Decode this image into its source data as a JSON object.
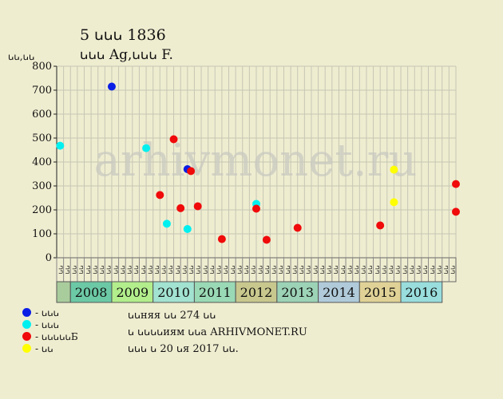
{
  "header": {
    "title_line1": "5 ꭎꭎꭎ 1836",
    "title_line2": "ꭎꭎꭎ Ag,ꭎꭎꭎ F.",
    "ylabel": "ꭎꭎ,ꭎꭎ"
  },
  "watermark": "arhivmonet.ru",
  "legend": [
    {
      "label": "- ꭎꭎꭎ",
      "color": "#0a1ee6"
    },
    {
      "label": "- ꭎꭎꭎ",
      "color": "#00f0f0"
    },
    {
      "label": "- ꭎꭎꭎꭎꭎБ",
      "color": "#f00a0a"
    },
    {
      "label": "- ꭎꭎ",
      "color": "#ffff00"
    }
  ],
  "notes": [
    "ꭎꭎняя ꭎꭎ 274 ꭎꭎ",
    "ꭎ ꭎꭎꭎꭎиям ꭎꭎа ARHIVMONET.RU",
    "ꭎꭎꭎ ꭎ 20 ꭎя 2017 ꭎꭎ."
  ],
  "chart_data": {
    "type": "scatter",
    "ylim": [
      0,
      800
    ],
    "yticks": [
      0,
      100,
      200,
      300,
      400,
      500,
      600,
      700,
      800
    ],
    "grid": true,
    "column_labels": [
      "ꭎꭎ",
      "ꭎꭎ",
      "ꭎꭎ",
      "ꭎꭎ",
      "ꭎꭎ",
      "ꭎꭎ",
      "ꭎꭎ",
      "ꭎꭎ",
      "ꭎꭎ",
      "ꭎꭎ",
      "ꭎꭎ",
      "ꭎꭎ",
      "ꭎꭎ",
      "ꭎꭎ",
      "ꭎꭎ",
      "ꭎꭎ",
      "ꭎꭎ",
      "ꭎꭎ",
      "ꭎꭎ",
      "ꭎꭎ",
      "ꭎꭎ",
      "ꭎꭎ",
      "ꭎꭎ",
      "ꭎꭎ",
      "ꭎꭎ",
      "ꭎꭎ",
      "ꭎꭎ",
      "ꭎꭎ",
      "ꭎꭎ",
      "ꭎꭎ",
      "ꭎꭎ",
      "ꭎꭎ",
      "ꭎꭎ",
      "ꭎꭎ",
      "ꭎꭎ",
      "ꭎꭎ",
      "ꭎꭎ",
      "ꭎꭎ",
      "ꭎꭎ",
      "ꭎꭎ",
      "ꭎꭎ",
      "ꭎꭎ",
      "ꭎꭎ",
      "ꭎꭎ",
      "ꭎꭎ",
      "ꭎꭎ",
      "ꭎꭎ",
      "ꭎꭎ",
      "ꭎꭎ",
      "ꭎꭎ",
      "ꭎꭎ",
      "ꭎꭎ",
      "ꭎꭎ",
      "ꭎꭎ",
      "ꭎꭎ",
      "ꭎꭎ",
      "ꭎꭎ",
      "ꭎꭎ"
    ],
    "years": [
      {
        "label": "",
        "color": "#a9cc9c",
        "cols": 2
      },
      {
        "label": "2008",
        "color": "#6cc9a6",
        "cols": 6
      },
      {
        "label": "2009",
        "color": "#b2ee8c",
        "cols": 6
      },
      {
        "label": "2010",
        "color": "#a2e2d0",
        "cols": 6
      },
      {
        "label": "2011",
        "color": "#9ad9b5",
        "cols": 6
      },
      {
        "label": "2012",
        "color": "#c8c88e",
        "cols": 6
      },
      {
        "label": "2013",
        "color": "#9cd2b6",
        "cols": 6
      },
      {
        "label": "2014",
        "color": "#b0cada",
        "cols": 6
      },
      {
        "label": "2015",
        "color": "#e0d296",
        "cols": 6
      },
      {
        "label": "2016",
        "color": "#99dddd",
        "cols": 6
      }
    ],
    "series": [
      {
        "color": "#0a1ee6",
        "points": [
          [
            7.5,
            715
          ],
          [
            18.5,
            370
          ]
        ]
      },
      {
        "color": "#00f0f0",
        "points": [
          [
            0,
            468
          ],
          [
            12.5,
            458
          ],
          [
            15.5,
            142
          ],
          [
            18.5,
            120
          ],
          [
            28.5,
            225
          ]
        ]
      },
      {
        "color": "#f00a0a",
        "points": [
          [
            14.5,
            262
          ],
          [
            16.5,
            495
          ],
          [
            17.5,
            207
          ],
          [
            19,
            362
          ],
          [
            20,
            215
          ],
          [
            23.5,
            78
          ],
          [
            28.5,
            205
          ],
          [
            30,
            75
          ],
          [
            34.5,
            125
          ],
          [
            46.5,
            135
          ],
          [
            57.5,
            308
          ],
          [
            57.5,
            192
          ]
        ]
      },
      {
        "color": "#ffff00",
        "points": [
          [
            48.5,
            368
          ],
          [
            48.5,
            232
          ]
        ]
      }
    ]
  }
}
